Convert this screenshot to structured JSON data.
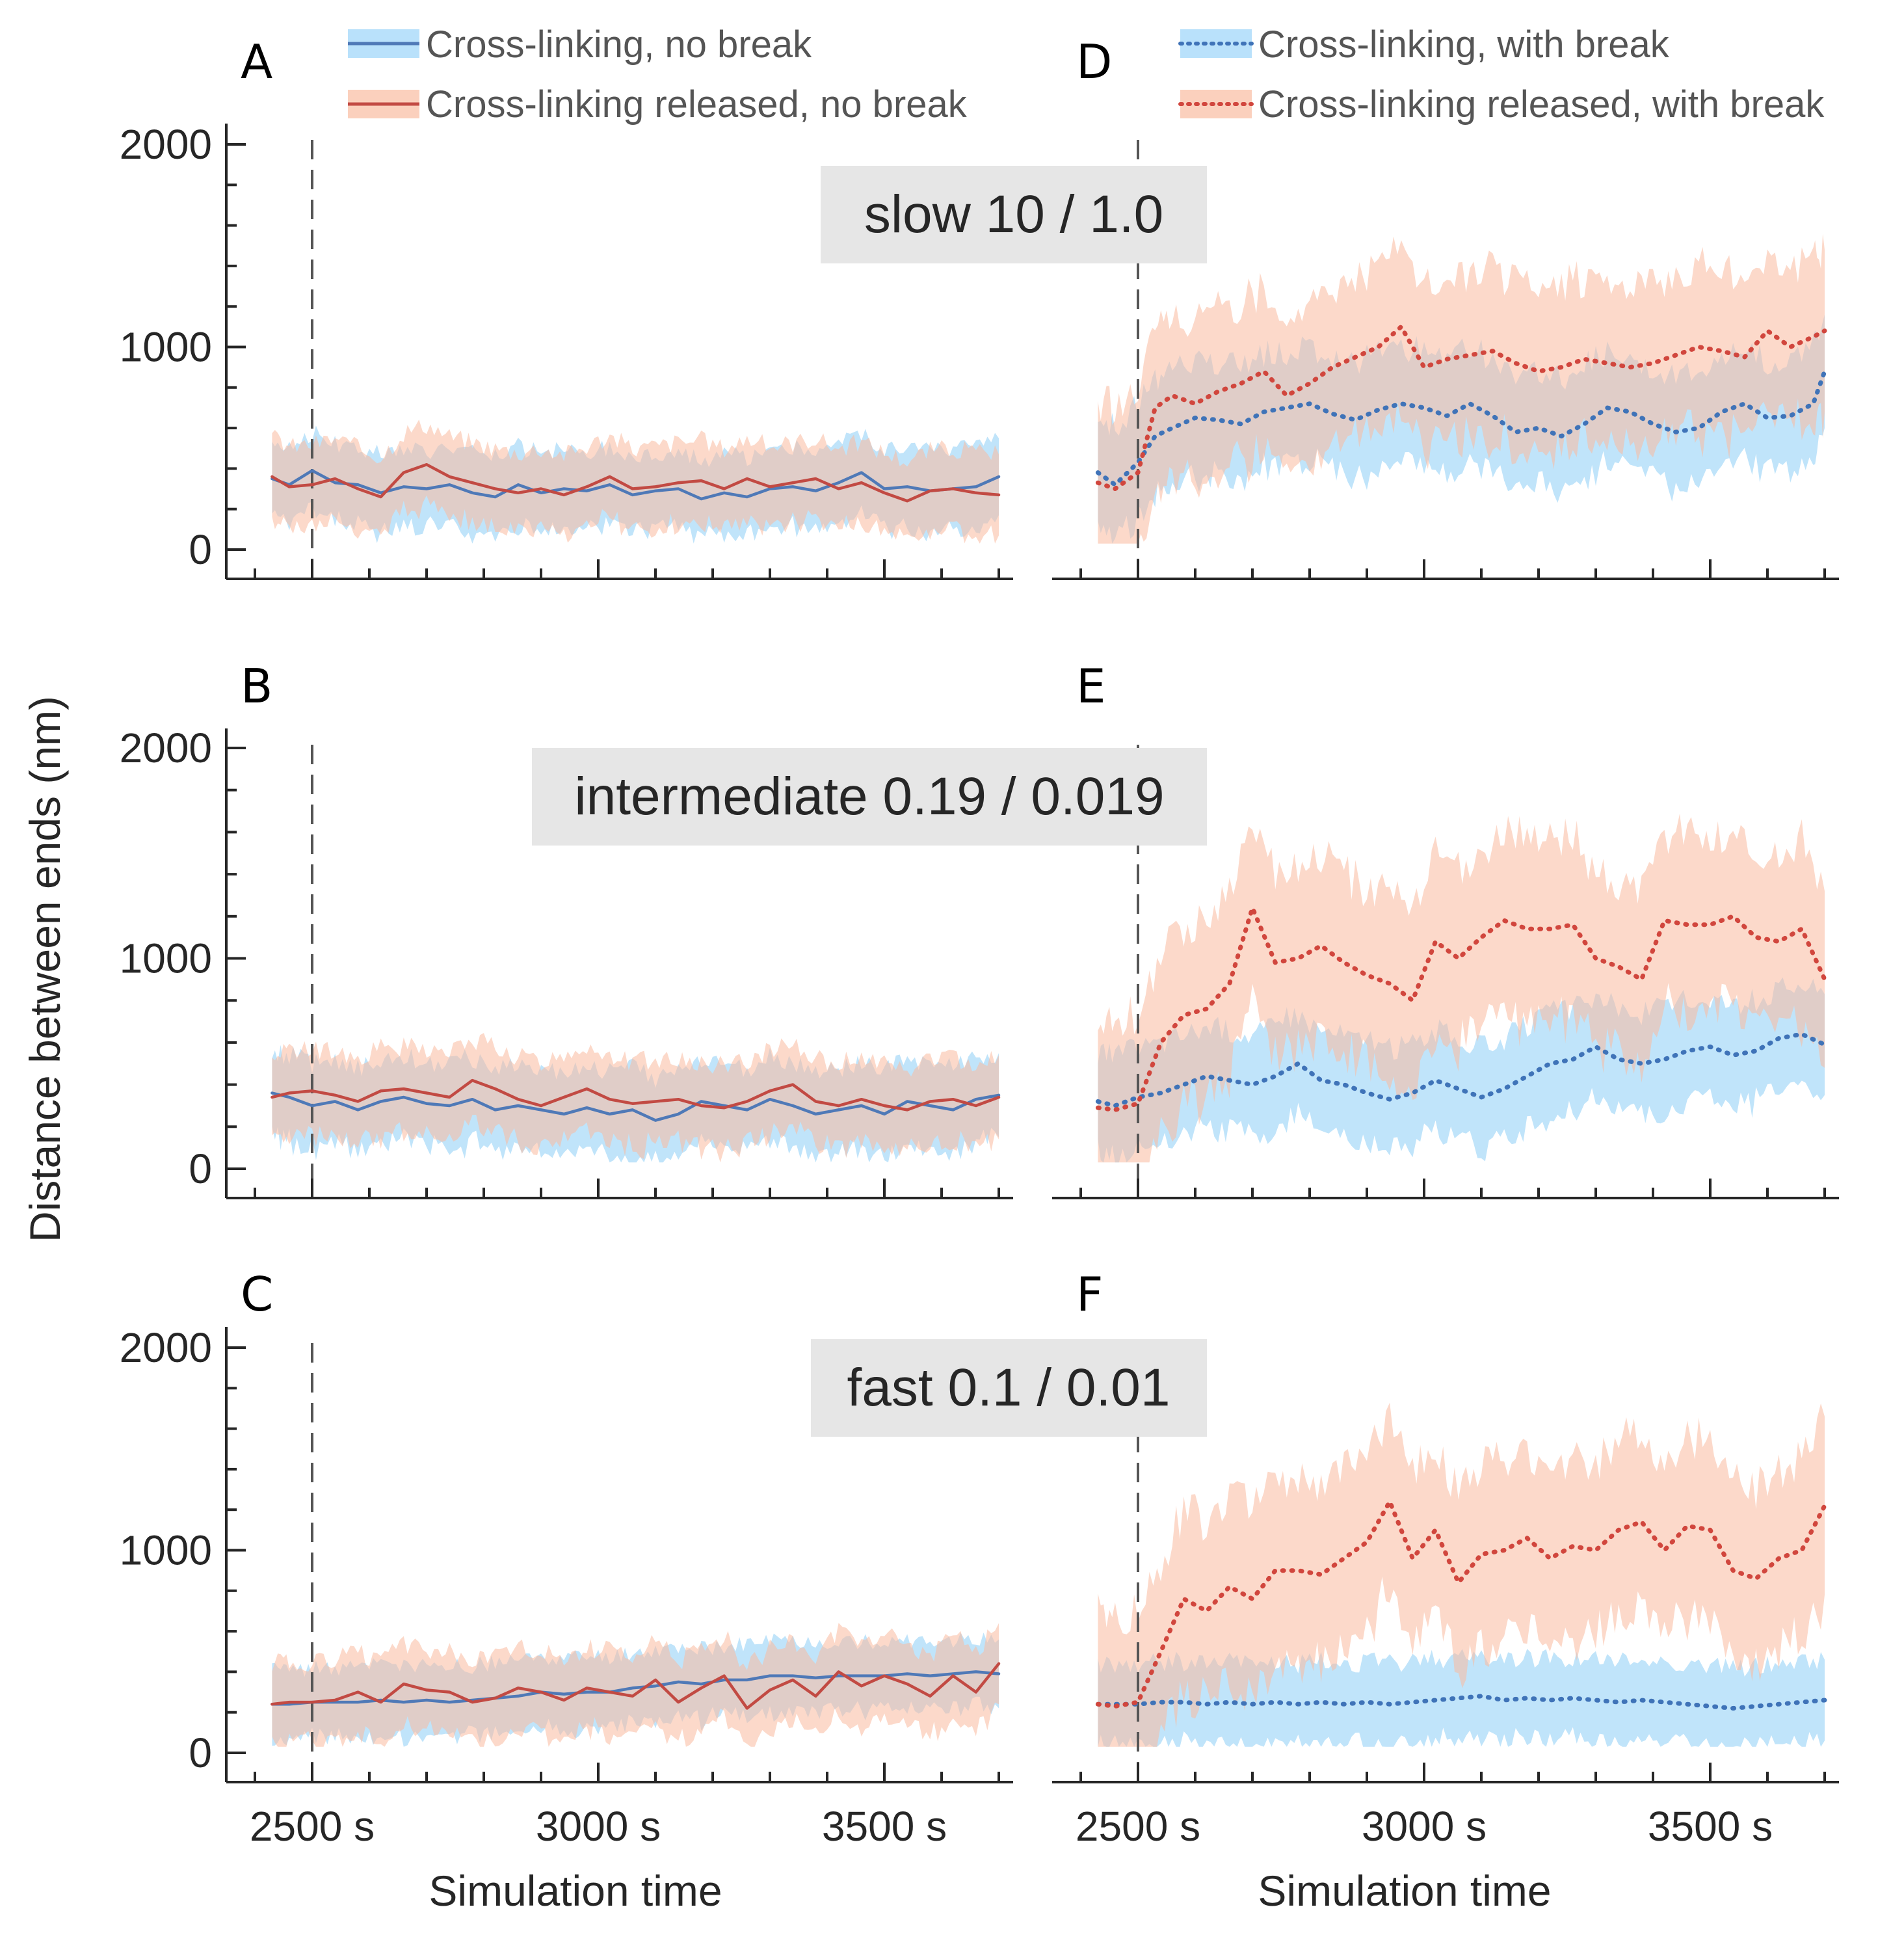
{
  "figure": {
    "ylabel": "Distance between ends (nm)",
    "xlabel": "Simulation time",
    "x_tick_labels": [
      "2500 s",
      "3000 s",
      "3500 s"
    ],
    "y_tick_labels": [
      "0",
      "1000",
      "2000"
    ]
  },
  "legend": {
    "left": [
      {
        "label": "Cross-linking, no break",
        "color": "#4f79b7",
        "style": "solid"
      },
      {
        "label": "Cross-linking released, no break",
        "color": "#c24a43",
        "style": "solid"
      }
    ],
    "right": [
      {
        "label": "Cross-linking, with break",
        "color": "#3f73b8",
        "style": "dotted"
      },
      {
        "label": "Cross-linking released, with break",
        "color": "#d1463d",
        "style": "dotted"
      }
    ]
  },
  "colors": {
    "blue_line": "#4f79b7",
    "red_line": "#c24a43",
    "blue_band": "#8ccdf6",
    "red_band": "#f9b99f",
    "regime_box": "#e6e6e6",
    "axis": "#262626"
  },
  "regimes": [
    {
      "label": "slow 10 / 1.0"
    },
    {
      "label": "intermediate 0.19 / 0.019"
    },
    {
      "label": "fast 0.1 / 0.01"
    }
  ],
  "chart_data": [
    {
      "panel": "A",
      "type": "line",
      "regime": "slow 10 / 1.0",
      "xlim": [
        2350,
        3720
      ],
      "ylim": [
        -150,
        2000
      ],
      "event_x": 2500,
      "series": [
        {
          "name": "Cross-linking, no break",
          "x": [
            2430,
            2460,
            2500,
            2540,
            2580,
            2620,
            2660,
            2700,
            2740,
            2780,
            2820,
            2860,
            2900,
            2940,
            2980,
            3020,
            3060,
            3100,
            3140,
            3180,
            3220,
            3260,
            3300,
            3340,
            3380,
            3420,
            3460,
            3500,
            3540,
            3580,
            3620,
            3660,
            3700
          ],
          "y": [
            350,
            320,
            390,
            330,
            320,
            280,
            310,
            300,
            320,
            280,
            260,
            320,
            280,
            300,
            290,
            320,
            270,
            290,
            300,
            250,
            280,
            260,
            300,
            310,
            290,
            330,
            380,
            300,
            310,
            290,
            300,
            310,
            360
          ],
          "band": 190
        },
        {
          "name": "Cross-linking released, no break",
          "x": [
            2430,
            2460,
            2500,
            2540,
            2580,
            2620,
            2660,
            2700,
            2740,
            2780,
            2820,
            2860,
            2900,
            2940,
            2980,
            3020,
            3060,
            3100,
            3140,
            3180,
            3220,
            3260,
            3300,
            3340,
            3380,
            3420,
            3460,
            3500,
            3540,
            3580,
            3620,
            3660,
            3700
          ],
          "y": [
            360,
            310,
            320,
            350,
            300,
            260,
            380,
            420,
            360,
            330,
            300,
            280,
            300,
            270,
            310,
            360,
            300,
            310,
            330,
            340,
            300,
            350,
            310,
            330,
            350,
            300,
            330,
            280,
            240,
            290,
            300,
            280,
            270
          ],
          "band": 200
        }
      ]
    },
    {
      "panel": "D",
      "type": "line",
      "regime": "slow 10 / 1.0",
      "xlim": [
        2350,
        3720
      ],
      "ylim": [
        -150,
        2000
      ],
      "event_x": 2500,
      "series": [
        {
          "name": "Cross-linking, with break",
          "x": [
            2430,
            2460,
            2500,
            2530,
            2560,
            2600,
            2640,
            2680,
            2720,
            2760,
            2800,
            2840,
            2880,
            2920,
            2960,
            3000,
            3040,
            3080,
            3120,
            3160,
            3200,
            3240,
            3280,
            3320,
            3360,
            3400,
            3440,
            3480,
            3520,
            3560,
            3600,
            3640,
            3680,
            3700
          ],
          "y": [
            380,
            320,
            430,
            560,
            600,
            650,
            640,
            620,
            680,
            700,
            720,
            670,
            640,
            690,
            720,
            700,
            660,
            720,
            660,
            580,
            600,
            560,
            620,
            700,
            680,
            620,
            580,
            600,
            680,
            720,
            650,
            660,
            720,
            880
          ],
          "band": 280
        },
        {
          "name": "Cross-linking released, with break",
          "x": [
            2430,
            2460,
            2500,
            2530,
            2560,
            2600,
            2640,
            2680,
            2720,
            2760,
            2800,
            2840,
            2880,
            2920,
            2960,
            3000,
            3040,
            3080,
            3120,
            3160,
            3200,
            3240,
            3280,
            3320,
            3360,
            3400,
            3440,
            3480,
            3520,
            3560,
            3600,
            3640,
            3680,
            3700
          ],
          "y": [
            330,
            300,
            380,
            700,
            760,
            720,
            780,
            820,
            880,
            760,
            820,
            900,
            950,
            1000,
            1100,
            900,
            940,
            960,
            980,
            920,
            880,
            900,
            940,
            920,
            900,
            920,
            960,
            1000,
            980,
            950,
            1080,
            1000,
            1050,
            1080
          ],
          "band": 400
        }
      ]
    },
    {
      "panel": "B",
      "type": "line",
      "regime": "intermediate 0.19 / 0.019",
      "xlim": [
        2350,
        3720
      ],
      "ylim": [
        -150,
        2000
      ],
      "event_x": 2500,
      "series": [
        {
          "name": "Cross-linking, no break",
          "x": [
            2430,
            2460,
            2500,
            2540,
            2580,
            2620,
            2660,
            2700,
            2740,
            2780,
            2820,
            2860,
            2900,
            2940,
            2980,
            3020,
            3060,
            3100,
            3140,
            3180,
            3220,
            3260,
            3300,
            3340,
            3380,
            3420,
            3460,
            3500,
            3540,
            3580,
            3620,
            3660,
            3700
          ],
          "y": [
            360,
            340,
            300,
            320,
            280,
            320,
            340,
            310,
            300,
            330,
            280,
            300,
            280,
            260,
            290,
            260,
            280,
            230,
            260,
            320,
            300,
            280,
            330,
            300,
            260,
            280,
            300,
            260,
            320,
            300,
            280,
            330,
            350
          ],
          "band": 200
        },
        {
          "name": "Cross-linking released, no break",
          "x": [
            2430,
            2460,
            2500,
            2540,
            2580,
            2620,
            2660,
            2700,
            2740,
            2780,
            2820,
            2860,
            2900,
            2940,
            2980,
            3020,
            3060,
            3100,
            3140,
            3180,
            3220,
            3260,
            3300,
            3340,
            3380,
            3420,
            3460,
            3500,
            3540,
            3580,
            3620,
            3660,
            3700
          ],
          "y": [
            340,
            360,
            370,
            350,
            320,
            370,
            380,
            360,
            340,
            420,
            380,
            330,
            300,
            340,
            380,
            330,
            310,
            320,
            330,
            300,
            290,
            320,
            370,
            400,
            320,
            300,
            330,
            300,
            280,
            320,
            330,
            300,
            340
          ],
          "band": 200
        }
      ]
    },
    {
      "panel": "E",
      "type": "line",
      "regime": "intermediate 0.19 / 0.019",
      "xlim": [
        2350,
        3720
      ],
      "ylim": [
        -150,
        2000
      ],
      "event_x": 2500,
      "series": [
        {
          "name": "Cross-linking, with break",
          "x": [
            2430,
            2460,
            2500,
            2540,
            2580,
            2620,
            2660,
            2700,
            2740,
            2780,
            2820,
            2860,
            2900,
            2940,
            2980,
            3020,
            3060,
            3100,
            3140,
            3180,
            3220,
            3260,
            3300,
            3340,
            3380,
            3420,
            3460,
            3500,
            3540,
            3580,
            3620,
            3660,
            3700
          ],
          "y": [
            320,
            300,
            340,
            360,
            400,
            440,
            420,
            400,
            440,
            500,
            420,
            400,
            360,
            330,
            360,
            420,
            380,
            340,
            380,
            440,
            500,
            520,
            580,
            520,
            500,
            520,
            560,
            580,
            540,
            560,
            620,
            640,
            590
          ],
          "band": 240
        },
        {
          "name": "Cross-linking released, with break",
          "x": [
            2430,
            2460,
            2500,
            2540,
            2580,
            2620,
            2660,
            2700,
            2740,
            2780,
            2820,
            2860,
            2900,
            2940,
            2980,
            3020,
            3060,
            3100,
            3140,
            3180,
            3220,
            3260,
            3300,
            3340,
            3380,
            3420,
            3460,
            3500,
            3540,
            3580,
            3620,
            3660,
            3700
          ],
          "y": [
            290,
            280,
            310,
            600,
            730,
            760,
            880,
            1240,
            980,
            1000,
            1060,
            980,
            920,
            880,
            800,
            1080,
            1000,
            1100,
            1180,
            1140,
            1140,
            1160,
            1000,
            960,
            900,
            1180,
            1160,
            1160,
            1200,
            1100,
            1080,
            1140,
            900
          ],
          "band": 420
        }
      ]
    },
    {
      "panel": "C",
      "type": "line",
      "regime": "fast 0.1 / 0.01",
      "xlim": [
        2350,
        3720
      ],
      "ylim": [
        -150,
        2000
      ],
      "event_x": 2500,
      "series": [
        {
          "name": "Cross-linking, no break",
          "x": [
            2430,
            2460,
            2500,
            2540,
            2580,
            2620,
            2660,
            2700,
            2740,
            2780,
            2820,
            2860,
            2900,
            2940,
            2980,
            3020,
            3060,
            3100,
            3140,
            3180,
            3220,
            3260,
            3300,
            3340,
            3380,
            3420,
            3460,
            3500,
            3540,
            3580,
            3620,
            3660,
            3700
          ],
          "y": [
            240,
            240,
            250,
            250,
            250,
            260,
            250,
            260,
            250,
            260,
            270,
            280,
            300,
            290,
            300,
            300,
            320,
            330,
            350,
            340,
            360,
            360,
            380,
            380,
            370,
            380,
            380,
            380,
            390,
            380,
            390,
            400,
            390
          ],
          "band": 170
        },
        {
          "name": "Cross-linking released, no break",
          "x": [
            2430,
            2460,
            2500,
            2540,
            2580,
            2620,
            2660,
            2700,
            2740,
            2780,
            2820,
            2860,
            2900,
            2940,
            2980,
            3020,
            3060,
            3100,
            3140,
            3180,
            3220,
            3260,
            3300,
            3340,
            3380,
            3420,
            3460,
            3500,
            3540,
            3580,
            3620,
            3660,
            3700
          ],
          "y": [
            240,
            250,
            250,
            260,
            300,
            250,
            340,
            310,
            300,
            250,
            270,
            320,
            300,
            260,
            320,
            300,
            280,
            360,
            250,
            320,
            380,
            220,
            310,
            360,
            280,
            400,
            330,
            380,
            340,
            280,
            380,
            300,
            440
          ],
          "band": 200
        }
      ]
    },
    {
      "panel": "F",
      "type": "line",
      "regime": "fast 0.1 / 0.01",
      "xlim": [
        2350,
        3720
      ],
      "ylim": [
        -150,
        2000
      ],
      "event_x": 2500,
      "series": [
        {
          "name": "Cross-linking, with break",
          "x": [
            2430,
            2460,
            2500,
            2540,
            2580,
            2620,
            2660,
            2700,
            2740,
            2780,
            2820,
            2860,
            2900,
            2940,
            2980,
            3020,
            3060,
            3100,
            3140,
            3180,
            3220,
            3260,
            3300,
            3340,
            3380,
            3420,
            3460,
            3500,
            3540,
            3580,
            3620,
            3660,
            3700
          ],
          "y": [
            240,
            240,
            240,
            250,
            250,
            240,
            250,
            240,
            250,
            240,
            250,
            240,
            250,
            240,
            250,
            260,
            270,
            280,
            260,
            270,
            260,
            270,
            260,
            250,
            260,
            250,
            240,
            230,
            220,
            230,
            240,
            250,
            260
          ],
          "band": 200
        },
        {
          "name": "Cross-linking released, with break",
          "x": [
            2430,
            2460,
            2500,
            2540,
            2580,
            2620,
            2660,
            2700,
            2740,
            2780,
            2820,
            2860,
            2900,
            2940,
            2980,
            3020,
            3060,
            3100,
            3140,
            3180,
            3220,
            3260,
            3300,
            3340,
            3380,
            3420,
            3460,
            3500,
            3540,
            3580,
            3620,
            3660,
            3700
          ],
          "y": [
            240,
            230,
            250,
            500,
            760,
            700,
            820,
            760,
            900,
            900,
            880,
            960,
            1040,
            1240,
            960,
            1100,
            840,
            980,
            1000,
            1060,
            960,
            1020,
            1000,
            1100,
            1140,
            1000,
            1120,
            1100,
            900,
            860,
            960,
            1000,
            1220
          ],
          "band": 440
        }
      ]
    }
  ]
}
